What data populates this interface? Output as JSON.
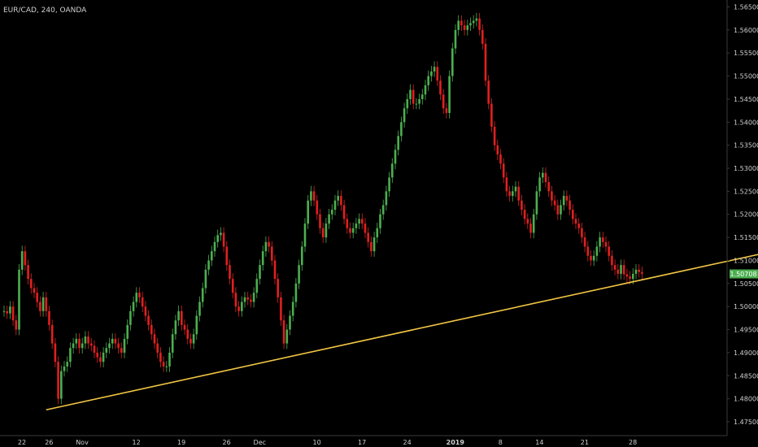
{
  "header": {
    "symbol": "EUR/CAD, 240, OANDA"
  },
  "colors": {
    "background": "#000000",
    "up": "#4caf50",
    "down": "#e02020",
    "trendline": "#f2c744",
    "price_tag": "#4caf50",
    "axis": "#3a3a3a",
    "text": "#d0d0d0"
  },
  "last_price": "1.50708",
  "chart_data": {
    "type": "candlestick",
    "title": "EUR/CAD, 240, OANDA",
    "y_ticks": [
      "1.56500",
      "1.56000",
      "1.55500",
      "1.55000",
      "1.54500",
      "1.54000",
      "1.53500",
      "1.53000",
      "1.52500",
      "1.52000",
      "1.51500",
      "1.51000",
      "1.50500",
      "1.50000",
      "1.49500",
      "1.49000",
      "1.48500",
      "1.48000",
      "1.47500"
    ],
    "ylim": [
      1.472,
      1.5665
    ],
    "x_ticks": [
      "22",
      "26",
      "Nov",
      "12",
      "19",
      "26",
      "Dec",
      "10",
      "17",
      "24",
      "2019",
      "8",
      "14",
      "21",
      "28"
    ],
    "x_tick_bar_index": [
      0,
      9,
      20,
      38,
      53,
      68,
      79,
      98,
      113,
      128,
      144,
      159,
      172,
      187,
      203
    ],
    "bar_count": 235,
    "series": [
      {
        "name": "Close",
        "values": [
          1.499,
          1.4985,
          1.5,
          1.497,
          1.495,
          1.508,
          1.512,
          1.509,
          1.506,
          1.504,
          1.503,
          1.501,
          1.499,
          1.502,
          1.499,
          1.496,
          1.492,
          1.488,
          1.48,
          1.486,
          1.487,
          1.488,
          1.491,
          1.492,
          1.493,
          1.491,
          1.492,
          1.4935,
          1.492,
          1.4915,
          1.49,
          1.489,
          1.488,
          1.49,
          1.491,
          1.492,
          1.493,
          1.492,
          1.491,
          1.49,
          1.493,
          1.496,
          1.499,
          1.501,
          1.503,
          1.502,
          1.5,
          1.498,
          1.496,
          1.494,
          1.492,
          1.49,
          1.488,
          1.487,
          1.487,
          1.49,
          1.494,
          1.497,
          1.499,
          1.496,
          1.495,
          1.493,
          1.492,
          1.494,
          1.498,
          1.501,
          1.504,
          1.508,
          1.51,
          1.512,
          1.514,
          1.5155,
          1.516,
          1.513,
          1.509,
          1.506,
          1.503,
          1.5,
          1.499,
          1.501,
          1.502,
          1.5015,
          1.501,
          1.503,
          1.506,
          1.509,
          1.512,
          1.514,
          1.513,
          1.51,
          1.506,
          1.502,
          1.497,
          1.492,
          1.495,
          1.498,
          1.501,
          1.505,
          1.509,
          1.513,
          1.518,
          1.523,
          1.525,
          1.523,
          1.52,
          1.517,
          1.515,
          1.518,
          1.52,
          1.521,
          1.523,
          1.524,
          1.522,
          1.519,
          1.517,
          1.516,
          1.517,
          1.518,
          1.519,
          1.518,
          1.516,
          1.514,
          1.512,
          1.515,
          1.517,
          1.52,
          1.522,
          1.525,
          1.528,
          1.531,
          1.534,
          1.537,
          1.54,
          1.543,
          1.545,
          1.547,
          1.544,
          1.544,
          1.545,
          1.546,
          1.548,
          1.55,
          1.551,
          1.552,
          1.549,
          1.546,
          1.543,
          1.542,
          1.55,
          1.556,
          1.56,
          1.562,
          1.561,
          1.56,
          1.561,
          1.5615,
          1.562,
          1.5625,
          1.56,
          1.557,
          1.549,
          1.544,
          1.539,
          1.535,
          1.533,
          1.531,
          1.528,
          1.525,
          1.524,
          1.525,
          1.526,
          1.523,
          1.521,
          1.519,
          1.518,
          1.516,
          1.52,
          1.525,
          1.528,
          1.529,
          1.527,
          1.525,
          1.523,
          1.522,
          1.52,
          1.522,
          1.524,
          1.523,
          1.521,
          1.519,
          1.518,
          1.517,
          1.515,
          1.513,
          1.511,
          1.51,
          1.511,
          1.513,
          1.515,
          1.514,
          1.513,
          1.511,
          1.509,
          1.508,
          1.5071,
          1.509,
          1.507,
          1.5065,
          1.506,
          1.5071,
          1.508,
          1.5075,
          1.5071,
          1.5075,
          1.5071,
          1.5075,
          1.5071,
          1.5075,
          1.5071,
          1.5075,
          1.5071,
          1.5075,
          1.5071,
          1.5075,
          1.5071,
          1.5075,
          1.5071,
          1.5075,
          1.5071,
          1.5075,
          1.5071,
          1.5075,
          1.5071
        ]
      }
    ],
    "visible_bars": 213,
    "trendline": {
      "from": {
        "bar": 14,
        "price": 1.4776
      },
      "to": {
        "bar": 252,
        "price": 1.5115
      }
    },
    "grid": false,
    "legend": "none"
  }
}
